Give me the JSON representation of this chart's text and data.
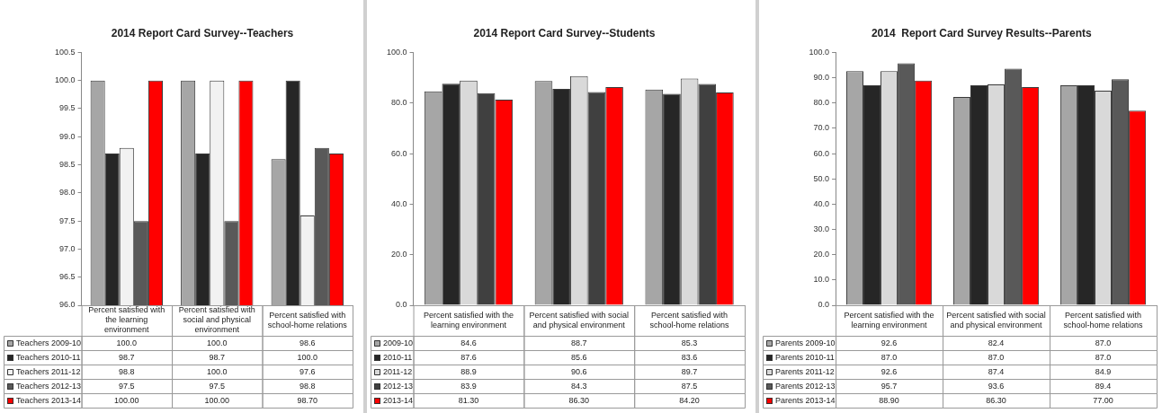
{
  "chart_data": [
    {
      "type": "bar",
      "title": "2014 Report Card Survey--Teachers",
      "categories": [
        "Percent satisfied with the learning environment",
        "Percent satisfied with social and physical environment",
        "Percent satisfied with school-home relations"
      ],
      "legend": "bottom left",
      "ylim": [
        96,
        100.5
      ],
      "yticks": [
        {
          "value": 96,
          "label": "96.0"
        },
        96.5,
        {
          "value": 97,
          "label": "97.0"
        },
        97.5,
        {
          "value": 98,
          "label": "98.0"
        },
        98.5,
        {
          "value": 99,
          "label": "99.0"
        },
        99.5,
        {
          "value": 100,
          "label": "100.0"
        },
        100.5
      ],
      "grid": false,
      "series": [
        {
          "name": "Teachers 2009-10",
          "color": "#a6a6a6",
          "values": [
            100.0,
            100.0,
            98.6
          ],
          "value_labels": [
            "100.0",
            "100.0",
            "98.6"
          ]
        },
        {
          "name": "Teachers 2010-11",
          "color": "#262626",
          "values": [
            98.7,
            98.7,
            100.0
          ],
          "value_labels": [
            "98.7",
            "98.7",
            "100.0"
          ]
        },
        {
          "name": "Teachers 2011-12",
          "color": "#f2f2f2",
          "values": [
            98.8,
            100.0,
            97.6
          ],
          "value_labels": [
            "98.8",
            "100.0",
            "97.6"
          ]
        },
        {
          "name": "Teachers 2012-13",
          "color": "#595959",
          "values": [
            97.5,
            97.5,
            98.8
          ],
          "value_labels": [
            "97.5",
            "97.5",
            "98.8"
          ]
        },
        {
          "name": "Teachers 2013-14",
          "color": "#ff0000",
          "values": [
            100.0,
            100.0,
            98.7
          ],
          "value_labels": [
            "100.00",
            "100.00",
            "98.70"
          ]
        }
      ]
    },
    {
      "type": "bar",
      "title": "2014 Report Card Survey--Students",
      "categories": [
        "Percent satisfied with the learning environment",
        "Percent satisfied with social and physical environment",
        "Percent satisfied with school-home relations"
      ],
      "legend": "bottom left",
      "ylim": [
        0,
        100
      ],
      "yticks": [
        {
          "value": 0,
          "label": "0.0"
        },
        {
          "value": 20,
          "label": "20.0"
        },
        {
          "value": 40,
          "label": "40.0"
        },
        {
          "value": 60,
          "label": "60.0"
        },
        {
          "value": 80,
          "label": "80.0"
        },
        {
          "value": 100,
          "label": "100.0"
        }
      ],
      "grid": false,
      "series": [
        {
          "name": "2009-10",
          "color": "#a6a6a6",
          "values": [
            84.6,
            88.7,
            85.3
          ],
          "value_labels": [
            "84.6",
            "88.7",
            "85.3"
          ]
        },
        {
          "name": "2010-11",
          "color": "#262626",
          "values": [
            87.6,
            85.6,
            83.6
          ],
          "value_labels": [
            "87.6",
            "85.6",
            "83.6"
          ]
        },
        {
          "name": "2011-12",
          "color": "#d9d9d9",
          "values": [
            88.9,
            90.6,
            89.7
          ],
          "value_labels": [
            "88.9",
            "90.6",
            "89.7"
          ]
        },
        {
          "name": "2012-13",
          "color": "#404040",
          "values": [
            83.9,
            84.3,
            87.5
          ],
          "value_labels": [
            "83.9",
            "84.3",
            "87.5"
          ]
        },
        {
          "name": "2013-14",
          "color": "#ff0000",
          "values": [
            81.3,
            86.3,
            84.2
          ],
          "value_labels": [
            "81.30",
            "86.30",
            "84.20"
          ]
        }
      ]
    },
    {
      "type": "bar",
      "title": "2014  Report Card Survey Results--Parents",
      "categories": [
        "Percent satisfied with the learning environment",
        "Percent satisfied with social and physical environment",
        "Percent satisfied with school-home relations"
      ],
      "legend": "bottom left",
      "ylim": [
        0,
        100
      ],
      "yticks": [
        {
          "value": 0,
          "label": "0.0"
        },
        {
          "value": 10,
          "label": "10.0"
        },
        {
          "value": 20,
          "label": "20.0"
        },
        {
          "value": 30,
          "label": "30.0"
        },
        {
          "value": 40,
          "label": "40.0"
        },
        {
          "value": 50,
          "label": "50.0"
        },
        {
          "value": 60,
          "label": "60.0"
        },
        {
          "value": 70,
          "label": "70.0"
        },
        {
          "value": 80,
          "label": "80.0"
        },
        {
          "value": 90,
          "label": "90.0"
        },
        {
          "value": 100,
          "label": "100.0"
        }
      ],
      "grid": false,
      "series": [
        {
          "name": "Parents 2009-10",
          "color": "#a6a6a6",
          "values": [
            92.6,
            82.4,
            87.0
          ],
          "value_labels": [
            "92.6",
            "82.4",
            "87.0"
          ]
        },
        {
          "name": "Parents 2010-11",
          "color": "#262626",
          "values": [
            87.0,
            87.0,
            87.0
          ],
          "value_labels": [
            "87.0",
            "87.0",
            "87.0"
          ]
        },
        {
          "name": "Parents 2011-12",
          "color": "#d9d9d9",
          "values": [
            92.6,
            87.4,
            84.9
          ],
          "value_labels": [
            "92.6",
            "87.4",
            "84.9"
          ]
        },
        {
          "name": "Parents 2012-13",
          "color": "#595959",
          "values": [
            95.7,
            93.6,
            89.4
          ],
          "value_labels": [
            "95.7",
            "93.6",
            "89.4"
          ]
        },
        {
          "name": "Parents 2013-14",
          "color": "#ff0000",
          "values": [
            88.9,
            86.3,
            77.0
          ],
          "value_labels": [
            "88.90",
            "86.30",
            "77.00"
          ]
        }
      ]
    }
  ]
}
